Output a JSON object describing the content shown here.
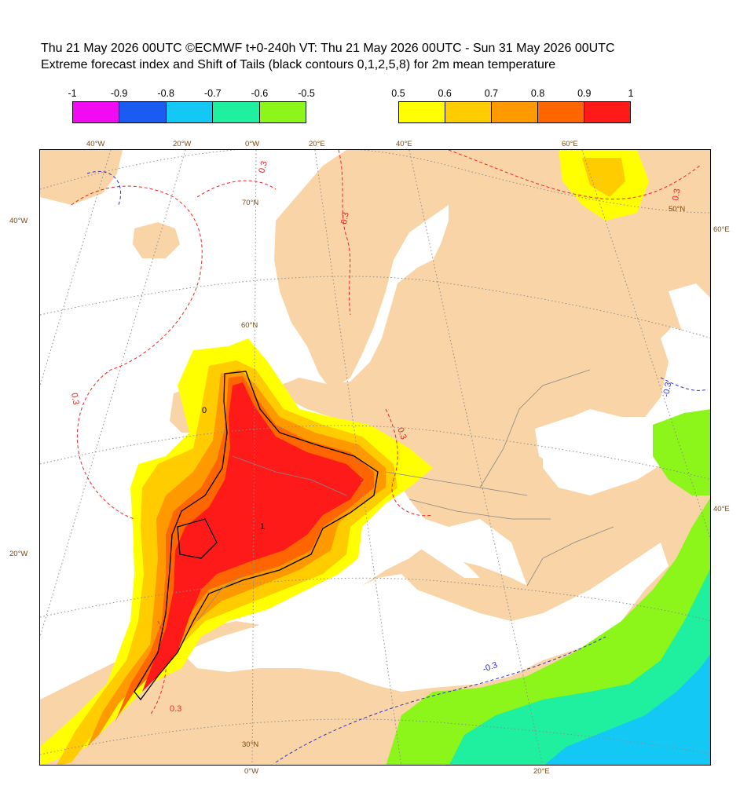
{
  "header": {
    "line1": "Thu 21 May 2026 00UTC ©ECMWF t+0-240h  VT: Thu 21 May 2026 00UTC - Sun 31 May 2026 00UTC",
    "line2": "Extreme forecast index and Shift of Tails (black contours 0,1,2,5,8) for 2m mean temperature"
  },
  "legend_negative": {
    "ticks": [
      "-1",
      "-0.9",
      "-0.8",
      "-0.7",
      "-0.6",
      "-0.5"
    ],
    "colors": [
      "#f20af2",
      "#1a5cf2",
      "#14c8f5",
      "#1ef0a0",
      "#8cf51a"
    ]
  },
  "legend_positive": {
    "ticks": [
      "0.5",
      "0.6",
      "0.7",
      "0.8",
      "0.9",
      "1"
    ],
    "colors": [
      "#ffff00",
      "#ffcc00",
      "#ff9900",
      "#ff6600",
      "#ff1a1a"
    ]
  },
  "map_colors": {
    "sea": "#ffffff",
    "land": "#f9d4a6",
    "border": "#888888",
    "grid": "#8c8c8c",
    "neg_contour": "#3333cc",
    "pos_contour": "#ee2222"
  },
  "grid_labels": {
    "top": [
      "40°W",
      "20°W",
      "0°W",
      "20°E",
      "40°E",
      "60°E"
    ],
    "left": [
      "40°W",
      "20°W"
    ],
    "right": [
      "60°E",
      "40°E"
    ],
    "bottom": [
      "0°W",
      "20°E"
    ],
    "lat": [
      "70°N",
      "60°N",
      "50°N",
      "30°N"
    ]
  },
  "contour_labels": {
    "efi_low": [
      "0.3",
      "0.3",
      "0.3",
      "0.3",
      "0.3",
      "0.3"
    ],
    "efi_neg": [
      "-0.3",
      "-0.3"
    ],
    "sot": [
      "0",
      "1"
    ]
  }
}
